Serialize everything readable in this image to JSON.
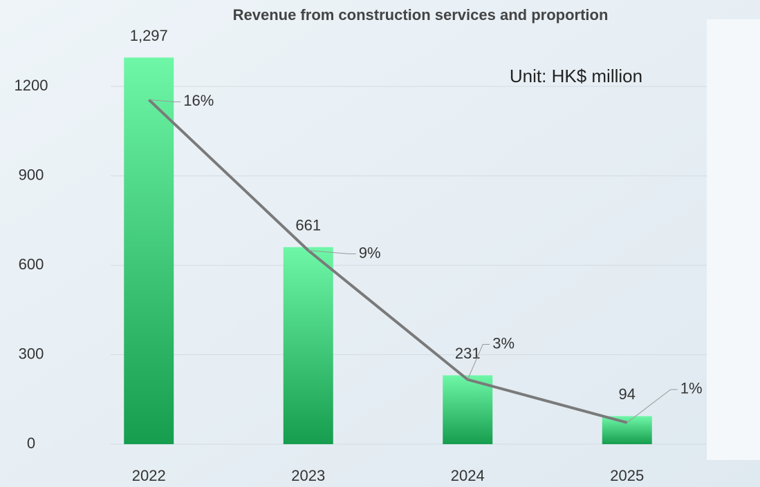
{
  "chart_data": {
    "type": "bar",
    "title": "Revenue from construction services and proportion",
    "annotation": "Unit: HK$ million",
    "categories": [
      "2022",
      "2023",
      "2024",
      "2025"
    ],
    "series": [
      {
        "type": "bar",
        "color": "#1ea352",
        "values": [
          1297,
          661,
          231,
          94
        ],
        "value_labels": [
          "1,297",
          "661",
          "231",
          "94"
        ]
      },
      {
        "type": "line",
        "axis": "y2",
        "color": "#7a7a7a",
        "values": [
          16,
          9,
          3,
          1
        ],
        "value_labels": [
          "16%",
          "9%",
          "3%",
          "1%"
        ]
      }
    ],
    "ylim": [
      0,
      1300
    ],
    "yticks": [
      0,
      300,
      600,
      900,
      1200
    ],
    "y2lim": [
      0,
      18
    ],
    "grid": true
  }
}
